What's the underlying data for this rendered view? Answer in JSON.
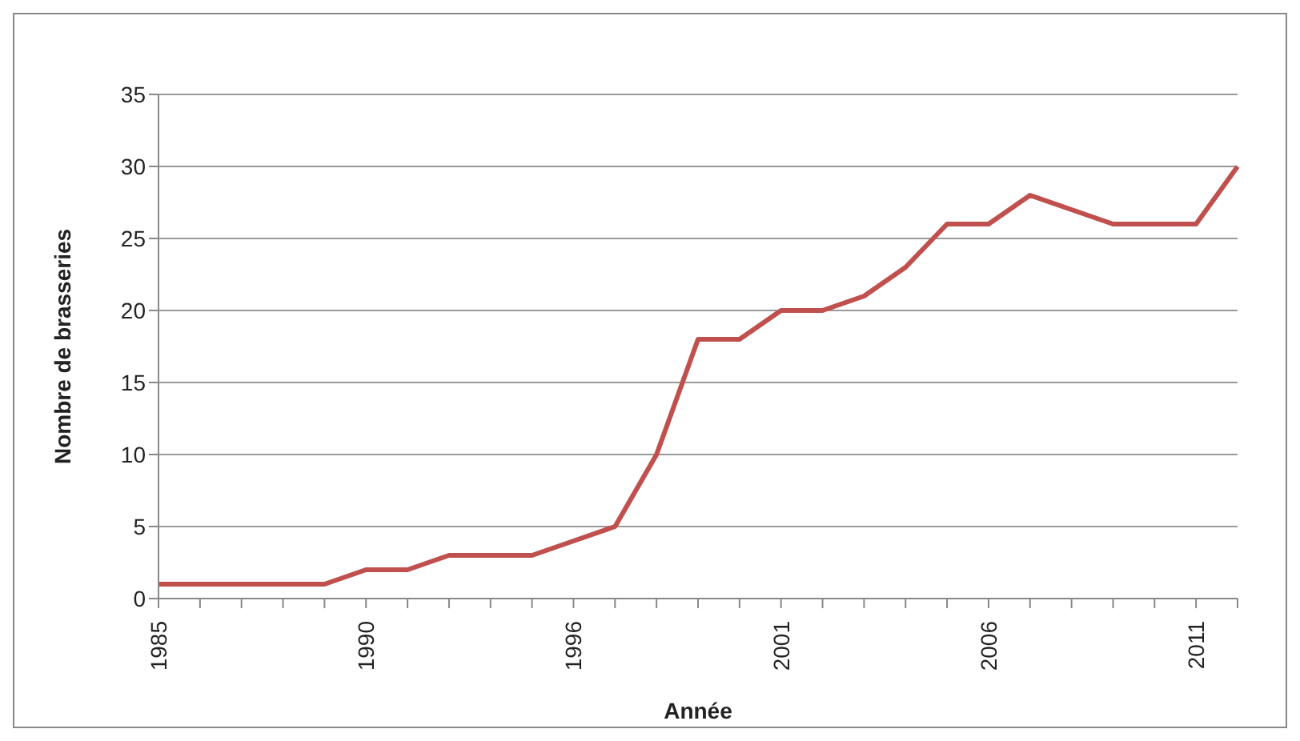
{
  "chart_data": {
    "type": "line",
    "xlabel": "Année",
    "ylabel": "Nombre de brasseries",
    "categories": [
      "1985",
      null,
      null,
      null,
      null,
      "1990",
      null,
      null,
      null,
      null,
      "1996",
      null,
      null,
      null,
      null,
      "2001",
      null,
      null,
      null,
      null,
      "2006",
      null,
      null,
      null,
      null,
      "2011",
      null
    ],
    "series": [
      {
        "color": "#c0504d",
        "values": [
          1,
          1,
          1,
          1,
          1,
          2,
          2,
          3,
          3,
          3,
          4,
          5,
          10,
          18,
          18,
          20,
          20,
          21,
          23,
          26,
          26,
          28,
          27,
          26,
          26,
          26,
          30
        ]
      }
    ],
    "ylim": [
      0,
      35
    ],
    "yticks": [
      0,
      5,
      10,
      15,
      20,
      25,
      30,
      35
    ],
    "grid": "y",
    "legend": false,
    "marker": "none",
    "line_style": "solid"
  }
}
